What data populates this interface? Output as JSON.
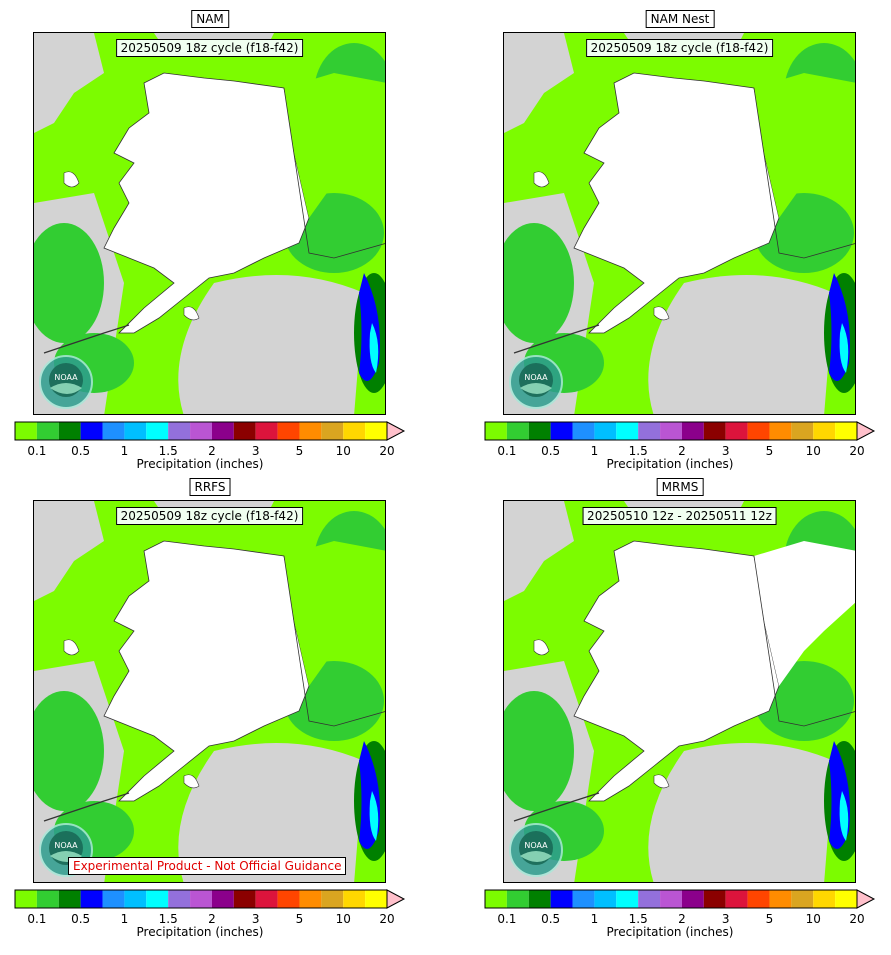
{
  "panels": [
    {
      "title": "NAM",
      "cycle": "20250509 18z cycle (f18-f42)",
      "disclaimer": ""
    },
    {
      "title": "NAM Nest",
      "cycle": "20250509 18z cycle (f18-f42)",
      "disclaimer": ""
    },
    {
      "title": "RRFS",
      "cycle": "20250509 18z cycle (f18-f42)",
      "disclaimer": "Experimental Product - Not Official Guidance"
    },
    {
      "title": "MRMS",
      "cycle": "20250510 12z - 20250511 12z",
      "disclaimer": ""
    }
  ],
  "colorbar": {
    "label": "Precipitation (inches)",
    "ticks": [
      "0.1",
      "0.5",
      "1",
      "1.5",
      "2",
      "3",
      "5",
      "10",
      "20"
    ],
    "tick_bin_index": [
      1,
      3,
      5,
      7,
      9,
      11,
      13,
      15,
      17
    ],
    "colors": [
      "#7cfc00",
      "#32cd32",
      "#008000",
      "#0000ff",
      "#1e90ff",
      "#00bfff",
      "#00ffff",
      "#9370db",
      "#ba55d3",
      "#8b008b",
      "#8b0000",
      "#dc143c",
      "#ff4500",
      "#ff8c00",
      "#daa520",
      "#ffd700",
      "#ffff00"
    ],
    "extend_color": "#ffc0cb"
  },
  "logo": {
    "name": "noaa-logo",
    "text": "NOAA",
    "colors": {
      "ring": "#2e9e8e",
      "center": "#1a6a56"
    }
  },
  "map_colors": {
    "land_dry": "#ffffff",
    "no_data": "#d3d3d3",
    "light": "#7cfc00",
    "medium": "#32cd32",
    "heavy": "#008000",
    "very_heavy": "#0000ff"
  }
}
